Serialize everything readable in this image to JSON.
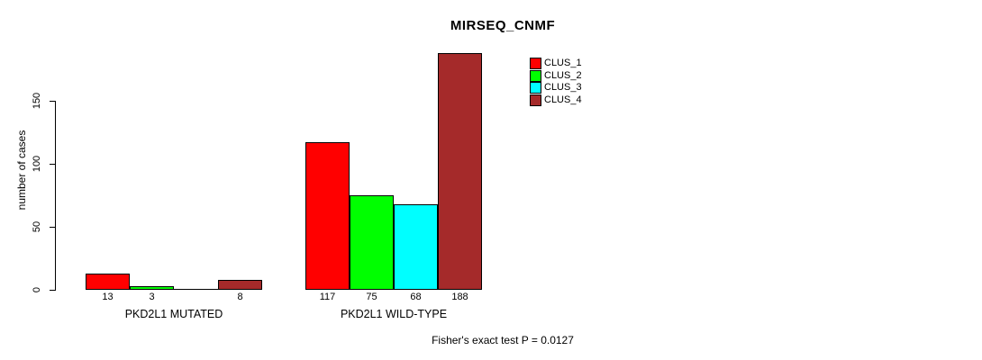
{
  "title": "MIRSEQ_CNMF",
  "chart_data": {
    "type": "bar",
    "title": "MIRSEQ_CNMF",
    "xlabel": "",
    "ylabel": "number of cases",
    "ylim": [
      0,
      196
    ],
    "yticks": [
      0,
      50,
      100,
      150
    ],
    "grid": false,
    "legend_position": "top-right",
    "categories": [
      "PKD2L1 MUTATED",
      "PKD2L1 WILD-TYPE"
    ],
    "series": [
      {
        "name": "CLUS_1",
        "color": "#ff0000",
        "values": [
          13,
          117
        ]
      },
      {
        "name": "CLUS_2",
        "color": "#00ff00",
        "values": [
          3,
          75
        ]
      },
      {
        "name": "CLUS_3",
        "color": "#00ffff",
        "values": [
          0,
          68
        ]
      },
      {
        "name": "CLUS_4",
        "color": "#a52a2a",
        "values": [
          8,
          188
        ]
      }
    ],
    "bar_count_labels": [
      [
        "13",
        "3",
        "",
        "8"
      ],
      [
        "117",
        "75",
        "68",
        "188"
      ]
    ],
    "annotation": "Fisher's exact test P = 0.0127"
  },
  "footer": "Fisher's exact test P = 0.0127",
  "colors": {
    "background": "#ffffff",
    "axis": "#000000",
    "text": "#000000"
  }
}
